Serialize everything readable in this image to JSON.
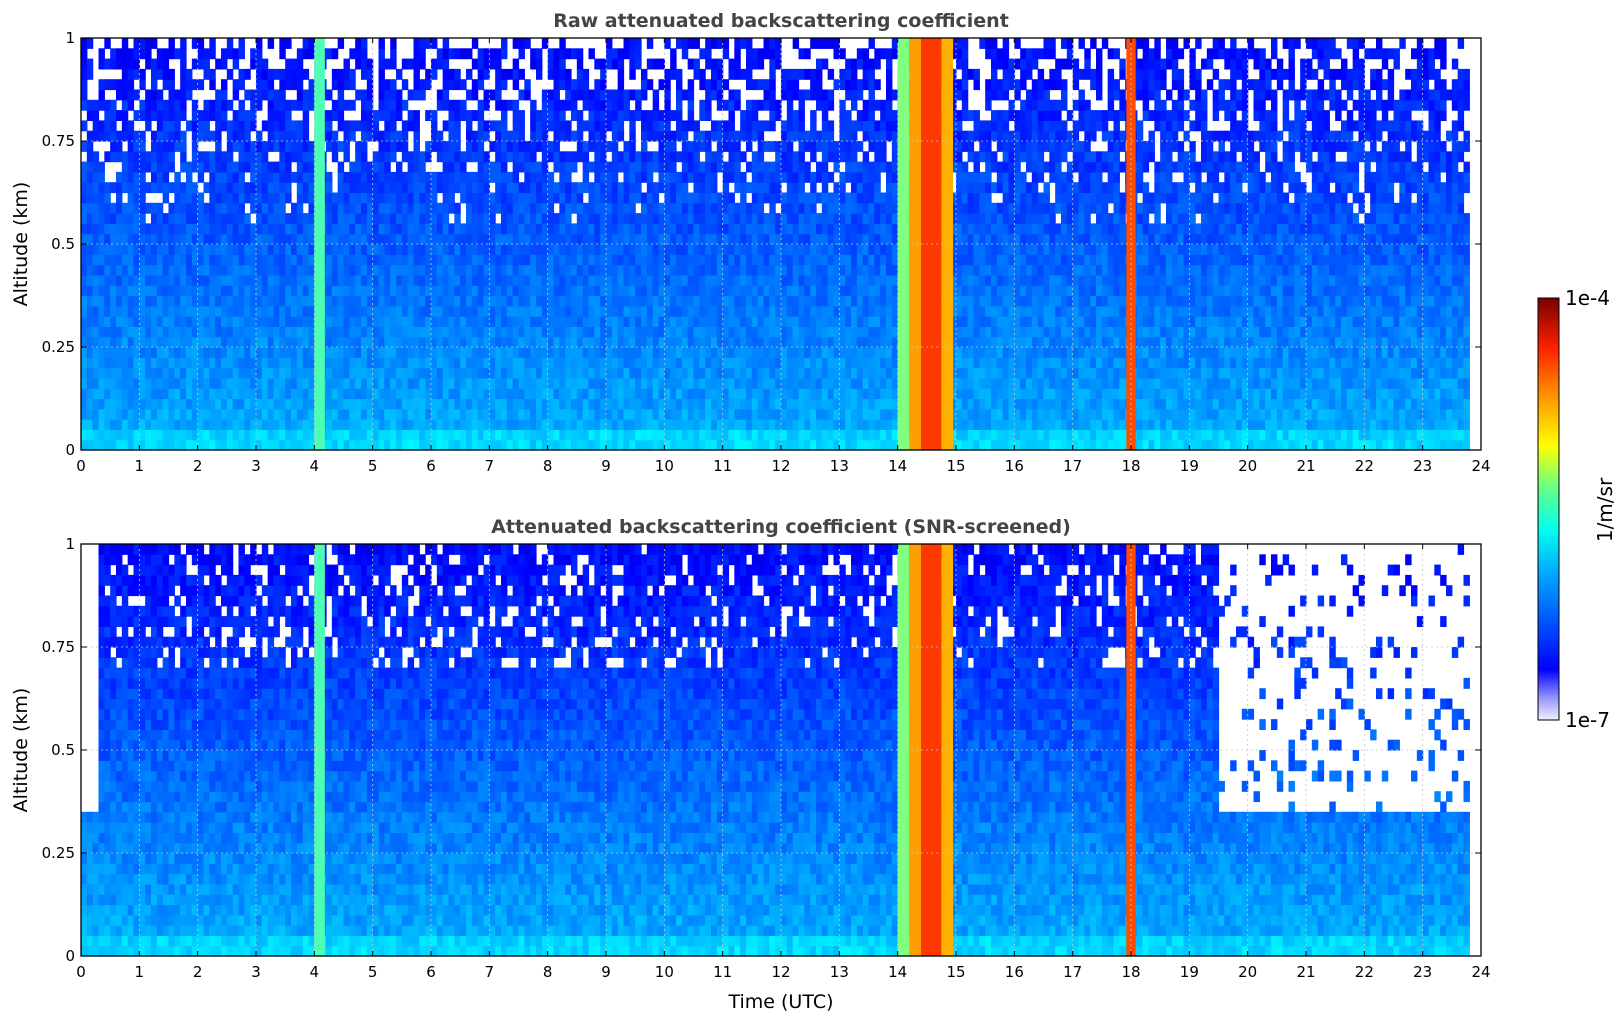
{
  "chart_data": [
    {
      "type": "heatmap",
      "title": "Raw attenuated backscattering coefficient",
      "xlabel": "",
      "ylabel": "Altitude (km)",
      "xlim": [
        0,
        24
      ],
      "ylim": [
        0,
        1
      ],
      "x_ticks": [
        "0",
        "1",
        "2",
        "3",
        "4",
        "5",
        "6",
        "7",
        "8",
        "9",
        "10",
        "11",
        "12",
        "13",
        "14",
        "15",
        "16",
        "17",
        "18",
        "19",
        "20",
        "21",
        "22",
        "23",
        "24"
      ],
      "y_ticks": [
        "0",
        "0.25",
        "0.5",
        "0.75",
        "1"
      ],
      "grid": true,
      "screened": false,
      "bands": [
        {
          "start": 4.0,
          "end": 4.18,
          "level": 0.45
        },
        {
          "start": 14.0,
          "end": 14.2,
          "level": 0.5
        },
        {
          "start": 14.2,
          "end": 14.4,
          "level": 0.72
        },
        {
          "start": 14.4,
          "end": 14.75,
          "level": 0.82
        },
        {
          "start": 14.75,
          "end": 14.95,
          "level": 0.7
        },
        {
          "start": 17.92,
          "end": 18.08,
          "level": 0.8
        }
      ]
    },
    {
      "type": "heatmap",
      "title": "Attenuated backscattering coefficient (SNR-screened)",
      "xlabel": "Time (UTC)",
      "ylabel": "Altitude (km)",
      "xlim": [
        0,
        24
      ],
      "ylim": [
        0,
        1
      ],
      "x_ticks": [
        "0",
        "1",
        "2",
        "3",
        "4",
        "5",
        "6",
        "7",
        "8",
        "9",
        "10",
        "11",
        "12",
        "13",
        "14",
        "15",
        "16",
        "17",
        "18",
        "19",
        "20",
        "21",
        "22",
        "23",
        "24"
      ],
      "y_ticks": [
        "0",
        "0.25",
        "0.5",
        "0.75",
        "1"
      ],
      "grid": true,
      "screened": true,
      "bands": [
        {
          "start": 4.0,
          "end": 4.18,
          "level": 0.45
        },
        {
          "start": 14.0,
          "end": 14.2,
          "level": 0.5
        },
        {
          "start": 14.2,
          "end": 14.4,
          "level": 0.72
        },
        {
          "start": 14.4,
          "end": 14.75,
          "level": 0.82
        },
        {
          "start": 14.75,
          "end": 14.95,
          "level": 0.7
        },
        {
          "start": 17.92,
          "end": 18.08,
          "level": 0.8
        }
      ]
    }
  ],
  "colorbar": {
    "label": "1/m/sr",
    "max_label": "1e-4",
    "min_label": "1e-7",
    "colormap": "jet"
  }
}
